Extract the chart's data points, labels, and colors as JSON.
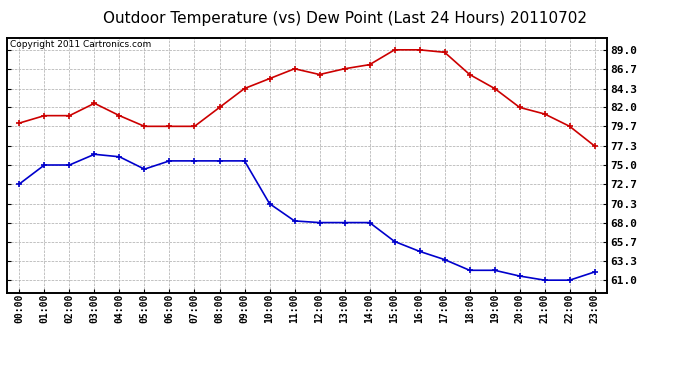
{
  "title": "Outdoor Temperature (vs) Dew Point (Last 24 Hours) 20110702",
  "copyright": "Copyright 2011 Cartronics.com",
  "hours": [
    "00:00",
    "01:00",
    "02:00",
    "03:00",
    "04:00",
    "05:00",
    "06:00",
    "07:00",
    "08:00",
    "09:00",
    "10:00",
    "11:00",
    "12:00",
    "13:00",
    "14:00",
    "15:00",
    "16:00",
    "17:00",
    "18:00",
    "19:00",
    "20:00",
    "21:00",
    "22:00",
    "23:00"
  ],
  "temp": [
    80.1,
    81.0,
    81.0,
    82.5,
    81.0,
    79.7,
    79.7,
    79.7,
    82.0,
    84.3,
    85.5,
    86.7,
    86.0,
    86.7,
    87.2,
    89.0,
    89.0,
    88.7,
    86.0,
    84.3,
    82.0,
    81.2,
    79.7,
    77.3
  ],
  "dew": [
    72.7,
    75.0,
    75.0,
    76.3,
    76.0,
    74.5,
    75.5,
    75.5,
    75.5,
    75.5,
    70.3,
    68.2,
    68.0,
    68.0,
    68.0,
    65.7,
    64.5,
    63.5,
    62.2,
    62.2,
    61.5,
    61.0,
    61.0,
    62.0
  ],
  "temp_color": "#cc0000",
  "dew_color": "#0000cc",
  "yticks": [
    61.0,
    63.3,
    65.7,
    68.0,
    70.3,
    72.7,
    75.0,
    77.3,
    79.7,
    82.0,
    84.3,
    86.7,
    89.0
  ],
  "ymin": 59.5,
  "ymax": 90.5,
  "bg_color": "#ffffff",
  "plot_bg_color": "#ffffff",
  "grid_color": "#aaaaaa",
  "title_fontsize": 11,
  "copyright_fontsize": 6.5
}
